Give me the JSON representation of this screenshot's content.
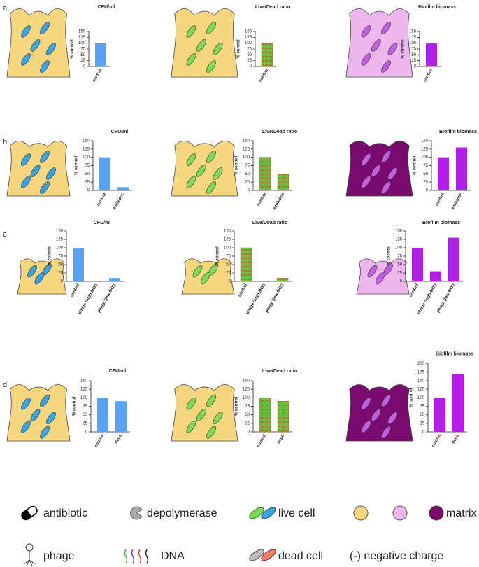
{
  "panels": [
    "a",
    "b",
    "c",
    "d"
  ],
  "chart_data": [
    {
      "type": "bar",
      "title": "CFU/ml",
      "y_label": "% control",
      "categories": [
        "control"
      ],
      "values": [
        100
      ],
      "color": "#5aa2f2",
      "ylim": [
        0,
        150
      ],
      "yticks": [
        0,
        25,
        50,
        75,
        100,
        125,
        150
      ]
    },
    {
      "type": "bar",
      "title": "Live/Dead ratio",
      "y_label": "% control",
      "categories": [
        "control"
      ],
      "values": [
        100
      ],
      "color": "#6cbf3c",
      "hatch_color": "#d2452a",
      "ylim": [
        0,
        150
      ],
      "yticks": [
        0,
        25,
        50,
        75,
        100,
        125,
        150
      ]
    },
    {
      "type": "bar",
      "title": "Biofilm biomass",
      "y_label": "% control",
      "categories": [
        "control"
      ],
      "values": [
        100
      ],
      "color": "#b41ee6",
      "ylim": [
        0,
        150
      ],
      "yticks": [
        0,
        25,
        50,
        75,
        100,
        125,
        150
      ]
    },
    {
      "type": "bar",
      "title": "CFU/ml",
      "y_label": "% control",
      "categories": [
        "control",
        "antibiotic"
      ],
      "values": [
        100,
        10
      ],
      "color": "#5aa2f2",
      "ylim": [
        0,
        150
      ],
      "yticks": [
        0,
        25,
        50,
        75,
        100,
        125,
        150
      ]
    },
    {
      "type": "bar",
      "title": "Live/Dead ratio",
      "y_label": "% control",
      "categories": [
        "control",
        "antibiotic"
      ],
      "values": [
        100,
        50
      ],
      "color": "#6cbf3c",
      "hatch_color": "#d2452a",
      "ylim": [
        0,
        150
      ],
      "yticks": [
        0,
        25,
        50,
        75,
        100,
        125,
        150
      ]
    },
    {
      "type": "bar",
      "title": "Biofilm biomass",
      "y_label": "% control",
      "categories": [
        "control",
        "antibiotic"
      ],
      "values": [
        100,
        130
      ],
      "color": "#b41ee6",
      "ylim": [
        0,
        150
      ],
      "yticks": [
        0,
        25,
        50,
        75,
        100,
        125,
        150
      ]
    },
    {
      "type": "bar",
      "title": "CFU/ml",
      "y_label": "% control",
      "categories": [
        "control",
        "phage (high MOI)",
        "phage (low MOI)"
      ],
      "values": [
        100,
        0,
        10
      ],
      "color": "#5aa2f2",
      "ylim": [
        0,
        150
      ],
      "yticks": [
        0,
        25,
        50,
        75,
        100,
        125,
        150
      ]
    },
    {
      "type": "bar",
      "title": "Live/Dead ratio",
      "y_label": "% control",
      "categories": [
        "control",
        "phage (high MOI)",
        "phage (low MOI)"
      ],
      "values": [
        100,
        0,
        10
      ],
      "color": "#6cbf3c",
      "hatch_color": "#d2452a",
      "ylim": [
        0,
        150
      ],
      "yticks": [
        0,
        25,
        50,
        75,
        100,
        125,
        150
      ]
    },
    {
      "type": "bar",
      "title": "Biofilm biomass",
      "y_label": "% control",
      "categories": [
        "control",
        "phage (high MOI)",
        "phage (low MOI)"
      ],
      "values": [
        100,
        30,
        130
      ],
      "color": "#b41ee6",
      "ylim": [
        0,
        150
      ],
      "yticks": [
        0,
        25,
        50,
        75,
        100,
        125,
        150
      ]
    },
    {
      "type": "bar",
      "title": "CFU/ml",
      "y_label": "% control",
      "categories": [
        "control",
        "depo"
      ],
      "values": [
        100,
        90
      ],
      "color": "#5aa2f2",
      "ylim": [
        0,
        150
      ],
      "yticks": [
        0,
        25,
        50,
        75,
        100,
        125,
        150
      ]
    },
    {
      "type": "bar",
      "title": "Live/Dead ratio",
      "y_label": "% control",
      "categories": [
        "control",
        "depo"
      ],
      "values": [
        100,
        90
      ],
      "color": "#6cbf3c",
      "hatch_color": "#d2452a",
      "ylim": [
        0,
        150
      ],
      "yticks": [
        0,
        25,
        50,
        75,
        100,
        125,
        150
      ]
    },
    {
      "type": "bar",
      "title": "Biofilm biomass",
      "y_label": "% control",
      "categories": [
        "control",
        "depo"
      ],
      "values": [
        100,
        170
      ],
      "color": "#b41ee6",
      "ylim": [
        0,
        200
      ],
      "yticks": [
        0,
        25,
        50,
        75,
        100,
        125,
        150,
        175,
        200
      ]
    }
  ],
  "legend": {
    "antibiotic": "antibiotic",
    "depolymerase": "depolymerase",
    "live_cell": "live cell",
    "matrix": "matrix",
    "phage": "phage",
    "dna": "DNA",
    "dead_cell": "dead cell",
    "negative_charge": "(-) negative charge"
  }
}
